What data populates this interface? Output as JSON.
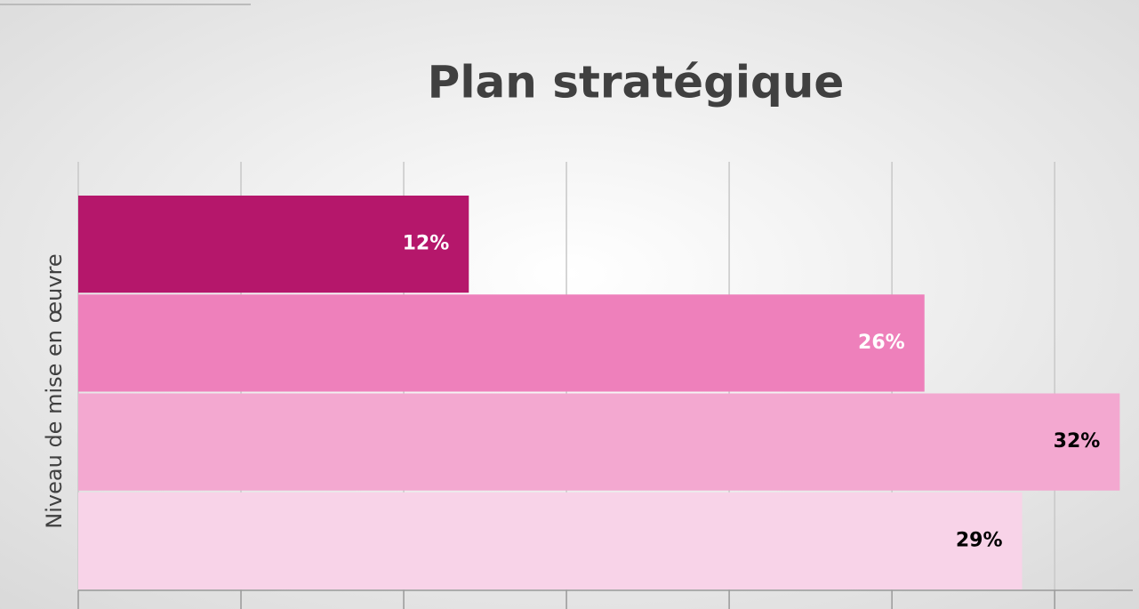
{
  "chart_data": {
    "type": "bar",
    "orientation": "horizontal",
    "title": "Plan stratégique",
    "y_label": "Niveau de mise en œuvre",
    "categories": [
      null,
      null,
      null,
      null
    ],
    "values": [
      12,
      26,
      32,
      29
    ],
    "value_labels": [
      "12%",
      "26%",
      "32%",
      "29%"
    ],
    "colors": [
      "#b5176b",
      "#ee80bb",
      "#f3a8d0",
      "#f8d3e8"
    ],
    "label_colors": [
      "#ffffff",
      "#ffffff",
      "#000000",
      "#000000"
    ],
    "xlim": [
      0,
      32.4
    ],
    "xticks": [
      0,
      5,
      10,
      15,
      20,
      25,
      30
    ],
    "grid": true
  }
}
